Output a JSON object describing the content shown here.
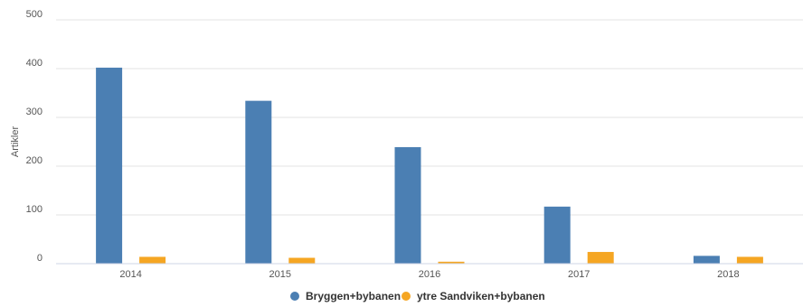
{
  "chart_data": {
    "type": "bar",
    "title": "",
    "xlabel": "",
    "ylabel": "Artikler",
    "ylim": [
      0,
      500
    ],
    "yticks": [
      0,
      100,
      200,
      300,
      400,
      500
    ],
    "grid": true,
    "legend_position": "bottom",
    "categories": [
      "2014",
      "2015",
      "2016",
      "2017",
      "2018"
    ],
    "series": [
      {
        "name": "Bryggen+bybanen",
        "color": "#4b7fb3",
        "values": [
          402,
          334,
          239,
          117,
          16
        ]
      },
      {
        "name": "ytre Sandviken+bybanen",
        "color": "#f5a623",
        "values": [
          14,
          12,
          4,
          24,
          14
        ]
      }
    ]
  }
}
